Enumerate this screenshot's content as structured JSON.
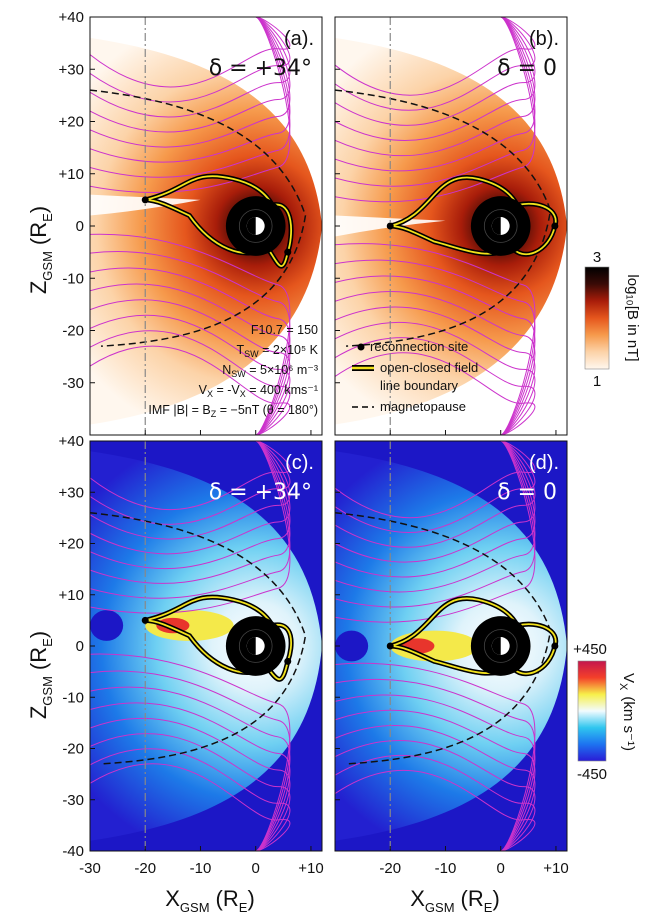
{
  "axes": {
    "x_label": "X",
    "x_sub": "GSM",
    "x_unit": "(R",
    "x_unit_sub": "E",
    "y_label": "Z",
    "y_sub": "GSM",
    "y_unit": "(R",
    "y_unit_sub": "E",
    "unit_close": ")"
  },
  "panels": [
    {
      "id": "a",
      "label": "(a).",
      "delta": "δ = +34°",
      "colormap": "field"
    },
    {
      "id": "b",
      "label": "(b).",
      "delta": "δ  = 0",
      "colormap": "field"
    },
    {
      "id": "c",
      "label": "(c).",
      "delta": "δ = +34°",
      "colormap": "velocity"
    },
    {
      "id": "d",
      "label": "(d).",
      "delta": "δ  = 0",
      "colormap": "velocity"
    }
  ],
  "params": [
    "F10.7 = 150",
    "T   = 2×10⁵ K",
    "N   = 5×10⁶ m⁻³",
    "V   = -V  = 400 kms⁻¹",
    "IMF |B| = B  = −5nT (θ = 180°)"
  ],
  "param_subs": [
    "SW",
    "SW",
    "SW",
    "X",
    "Z"
  ],
  "legend": {
    "reconnection": "reconnection site",
    "boundary_1": "open-closed field",
    "boundary_2": "line boundary",
    "magnetopause": "magnetopause"
  },
  "colorbar_top": {
    "max_label": "3",
    "min_label": "1",
    "title": "log₁₀[B in nT]",
    "colors": [
      "#fff7ee",
      "#fcd3a8",
      "#f69a4c",
      "#e5561d",
      "#a81d0a",
      "#3a0a06",
      "#000000"
    ]
  },
  "colorbar_bottom": {
    "max_label": "+450",
    "min_label": "-450",
    "title": "V",
    "title_sub": "X",
    "title_unit": "(km s⁻¹)",
    "colors": [
      "#2a1bd6",
      "#1d73f0",
      "#2fc6ef",
      "#f2fbff",
      "#f7ef4a",
      "#f4402a",
      "#c4164d"
    ]
  },
  "chart_data": {
    "type": "heatmap",
    "xlim": [
      -30,
      12
    ],
    "ylim": [
      -40,
      40
    ],
    "x_ticks": [
      -30,
      -20,
      -10,
      0,
      10
    ],
    "x_tick_labels": [
      "-30",
      "-20",
      "-10",
      "0",
      "+10"
    ],
    "y_ticks": [
      40,
      30,
      20,
      10,
      0,
      -10,
      -20,
      -30,
      -40
    ],
    "y_tick_labels": [
      "+40",
      "+30",
      "+20",
      "+10",
      "0",
      "-10",
      "-20",
      "-30",
      "-40"
    ],
    "dash_dot_x": -20,
    "reconnection_sites": {
      "a": [
        [
          -20,
          5
        ],
        [
          5.8,
          -5
        ]
      ],
      "b": [
        [
          -20,
          0
        ],
        [
          9.8,
          0
        ]
      ],
      "c": [
        [
          -20,
          5
        ],
        [
          5.8,
          -3
        ]
      ],
      "d": [
        [
          -20,
          0
        ],
        [
          9.8,
          0
        ]
      ]
    },
    "series": [
      {
        "panel": "a",
        "earth": [
          0,
          0
        ]
      },
      {
        "panel": "b",
        "earth": [
          0,
          0
        ]
      },
      {
        "panel": "c",
        "earth": [
          0,
          0
        ]
      },
      {
        "panel": "d",
        "earth": [
          0,
          0
        ]
      }
    ]
  },
  "colors": {
    "field_line": "#cc33cc",
    "boundary": "#f2e21a",
    "axis": "#111111"
  }
}
